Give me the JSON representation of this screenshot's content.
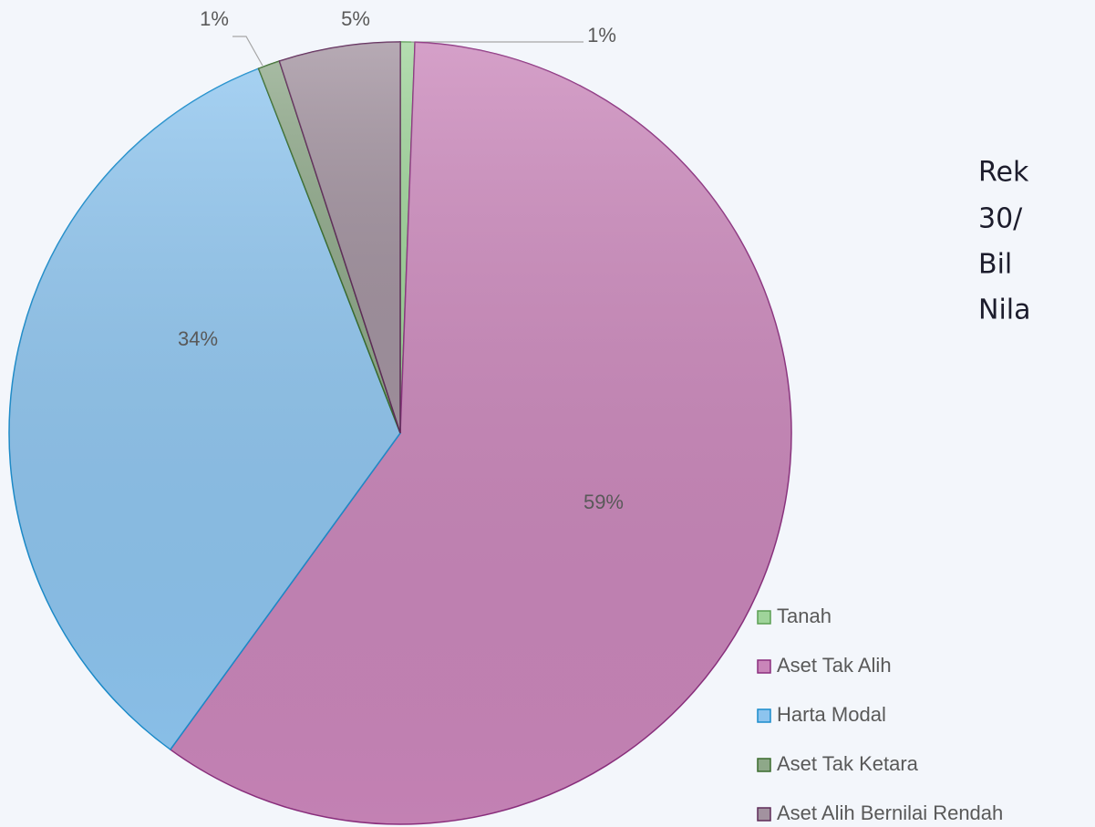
{
  "chart_data": {
    "type": "pie",
    "categories": [
      "Tanah",
      "Aset Tak Alih",
      "Harta Modal",
      "Aset Tak Ketara",
      "Aset Alih Bernilai Rendah"
    ],
    "values": [
      0.6,
      59.4,
      34.1,
      0.9,
      5.0
    ],
    "value_labels": [
      "1%",
      "59%",
      "34%",
      "1%",
      "5%"
    ],
    "colors": [
      "#9fd49a",
      "#c985b9",
      "#8dc4ee",
      "#8ea889",
      "#a2929f"
    ],
    "legend": "bottom-right"
  },
  "side_text": [
    "Rek",
    "30/",
    "Bil",
    "Nila"
  ]
}
